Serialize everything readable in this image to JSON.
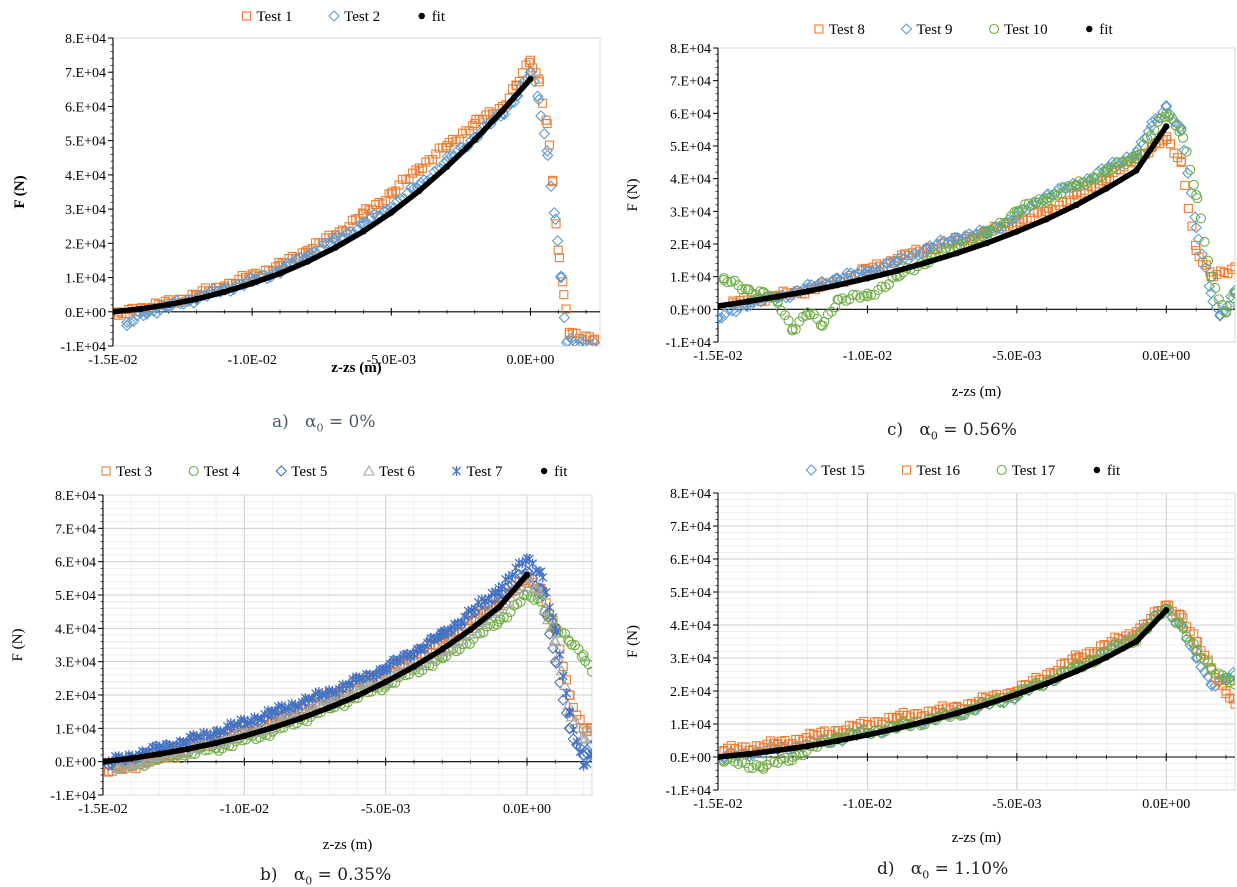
{
  "charts": [
    {
      "id": "a",
      "caption": {
        "letter": "a)",
        "symbol": "α",
        "sub": "0",
        "rest": " = 0%"
      },
      "ylabel": "F (N)",
      "xlabel": "z-zs (m)",
      "bold_labels": true,
      "legend": [
        {
          "name": "Test 1",
          "marker": "square",
          "color": "#ED7D31"
        },
        {
          "name": "Test 2",
          "marker": "diamond",
          "color": "#5B9BD5"
        },
        {
          "name": "fit",
          "marker": "dot",
          "color": "#000000"
        }
      ]
    },
    {
      "id": "c",
      "caption": {
        "letter": "c)",
        "symbol": "α",
        "sub": "0",
        "rest": " = 0.56%"
      },
      "ylabel": "F (N)",
      "xlabel": "z-zs (m)",
      "bold_labels": false,
      "legend": [
        {
          "name": "Test 8",
          "marker": "square",
          "color": "#ED7D31"
        },
        {
          "name": "Test 9",
          "marker": "diamond",
          "color": "#5B9BD5"
        },
        {
          "name": "Test 10",
          "marker": "circle",
          "color": "#70AD47"
        },
        {
          "name": "fit",
          "marker": "dot",
          "color": "#000000"
        }
      ]
    },
    {
      "id": "b",
      "caption": {
        "letter": "b)",
        "symbol": "α",
        "sub": "0",
        "rest": " = 0.35%"
      },
      "ylabel": "F (N)",
      "xlabel": "z-zs (m)",
      "bold_labels": false,
      "legend": [
        {
          "name": "Test 3",
          "marker": "square",
          "color": "#ED7D31"
        },
        {
          "name": "Test 4",
          "marker": "circle",
          "color": "#70AD47"
        },
        {
          "name": "Test 5",
          "marker": "diamond",
          "color": "#4472C4"
        },
        {
          "name": "Test 6",
          "marker": "triangle",
          "color": "#A5A5A5"
        },
        {
          "name": "Test 7",
          "marker": "star",
          "color": "#4472C4"
        },
        {
          "name": "fit",
          "marker": "dot",
          "color": "#000000"
        }
      ]
    },
    {
      "id": "d",
      "caption": {
        "letter": "d)",
        "symbol": "α",
        "sub": "0",
        "rest": " = 1.10%"
      },
      "ylabel": "F (N)",
      "xlabel": "z-zs (m)",
      "bold_labels": false,
      "legend": [
        {
          "name": "Test 15",
          "marker": "diamond",
          "color": "#5B9BD5"
        },
        {
          "name": "Test 16",
          "marker": "square",
          "color": "#ED7D31"
        },
        {
          "name": "Test 17",
          "marker": "circle",
          "color": "#70AD47"
        },
        {
          "name": "fit",
          "marker": "dot",
          "color": "#000000"
        }
      ]
    }
  ],
  "chart_data": [
    {
      "panel": "a",
      "type": "scatter",
      "xlabel": "z-zs (m)",
      "ylabel": "F (N)",
      "xlim": [
        -0.015,
        0.0025
      ],
      "ylim": [
        -10000,
        80000
      ],
      "xticks": [
        -0.015,
        -0.01,
        -0.005,
        0
      ],
      "xtick_labels": [
        "-1.5E-02",
        "-1.0E-02",
        "-5.0E-03",
        "0.0E+00"
      ],
      "yticks": [
        -10000,
        0,
        10000,
        20000,
        30000,
        40000,
        50000,
        60000,
        70000,
        80000
      ],
      "ytick_labels": [
        "-1.E+04",
        "0.E+00",
        "1.E+04",
        "2.E+04",
        "3.E+04",
        "4.E+04",
        "5.E+04",
        "6.E+04",
        "7.E+04",
        "8.E+04"
      ],
      "grid": false,
      "legend": "top",
      "series": [
        {
          "name": "Test 1",
          "marker": "square",
          "x": [
            -0.0148,
            -0.014,
            -0.013,
            -0.012,
            -0.011,
            -0.01,
            -0.009,
            -0.008,
            -0.007,
            -0.006,
            -0.005,
            -0.004,
            -0.003,
            -0.002,
            -0.001,
            -0.0005,
            0.0,
            0.0003,
            0.0006,
            0.0008,
            0.001,
            0.0012,
            0.0014,
            0.0023
          ],
          "y": [
            -1000,
            1000,
            2500,
            5000,
            7500,
            10500,
            13500,
            18000,
            22500,
            28500,
            34500,
            42000,
            48500,
            55000,
            60000,
            66000,
            73500,
            68000,
            55000,
            38000,
            18000,
            5000,
            -6000,
            -8000
          ]
        },
        {
          "name": "Test 2",
          "marker": "diamond",
          "x": [
            -0.0145,
            -0.0138,
            -0.013,
            -0.012,
            -0.011,
            -0.01,
            -0.009,
            -0.008,
            -0.007,
            -0.006,
            -0.005,
            -0.004,
            -0.003,
            -0.002,
            -0.001,
            -0.0005,
            0.0,
            0.0003,
            0.0006,
            0.0009,
            0.0011,
            0.0013,
            0.0023
          ],
          "y": [
            -4000,
            0,
            1500,
            4000,
            6500,
            9000,
            12000,
            16500,
            21000,
            25500,
            30500,
            37000,
            44000,
            51000,
            58000,
            63000,
            70000,
            62000,
            47000,
            27000,
            10000,
            -9000,
            -9000
          ]
        },
        {
          "name": "fit",
          "marker": "dot",
          "x": [
            -0.015,
            -0.014,
            -0.013,
            -0.012,
            -0.011,
            -0.01,
            -0.009,
            -0.008,
            -0.007,
            -0.006,
            -0.005,
            -0.004,
            -0.003,
            -0.002,
            -0.001,
            0.0
          ],
          "y": [
            0,
            850,
            2100,
            3700,
            5800,
            8300,
            11200,
            14700,
            18800,
            23500,
            29000,
            35300,
            42400,
            50200,
            58800,
            68000
          ]
        }
      ]
    },
    {
      "panel": "c",
      "type": "scatter",
      "xlabel": "z-zs (m)",
      "ylabel": "F (N)",
      "xlim": [
        -0.015,
        0.0023
      ],
      "ylim": [
        -10000,
        80000
      ],
      "xticks": [
        -0.015,
        -0.01,
        -0.005,
        0
      ],
      "xtick_labels": [
        "-1.5E-02",
        "-1.0E-02",
        "-5.0E-03",
        "0.0E+00"
      ],
      "yticks": [
        -10000,
        0,
        10000,
        20000,
        30000,
        40000,
        50000,
        60000,
        70000,
        80000
      ],
      "ytick_labels": [
        "-1.E+04",
        "0.E+00",
        "1.E+04",
        "2.E+04",
        "3.E+04",
        "4.E+04",
        "5.E+04",
        "6.E+04",
        "7.E+04",
        "8.E+04"
      ],
      "grid": false,
      "legend": "top",
      "series": [
        {
          "name": "Test 8",
          "marker": "square",
          "x": [
            -0.0145,
            -0.013,
            -0.0115,
            -0.01,
            -0.009,
            -0.008,
            -0.007,
            -0.006,
            -0.005,
            -0.004,
            -0.003,
            -0.002,
            -0.001,
            -0.0005,
            0.0,
            0.0005,
            0.001,
            0.0015,
            0.0023
          ],
          "y": [
            2000,
            4000,
            7000,
            12000,
            15500,
            18500,
            21000,
            23500,
            26500,
            30000,
            35000,
            40000,
            46000,
            49500,
            52000,
            45000,
            18000,
            10000,
            13000
          ]
        },
        {
          "name": "Test 9",
          "marker": "diamond",
          "x": [
            -0.015,
            -0.014,
            -0.013,
            -0.012,
            -0.011,
            -0.01,
            -0.009,
            -0.008,
            -0.007,
            -0.006,
            -0.005,
            -0.004,
            -0.003,
            -0.002,
            -0.001,
            -0.0005,
            0.0,
            0.0005,
            0.001,
            0.0015,
            0.0018,
            0.0023
          ],
          "y": [
            -3000,
            2000,
            3500,
            6500,
            9500,
            11500,
            14500,
            18500,
            22000,
            23500,
            28500,
            35000,
            38000,
            43000,
            48000,
            56000,
            62000,
            55000,
            25000,
            5000,
            -2000,
            5000
          ]
        },
        {
          "name": "Test 10",
          "marker": "circle",
          "x": [
            -0.0148,
            -0.014,
            -0.0135,
            -0.013,
            -0.0125,
            -0.012,
            -0.0115,
            -0.011,
            -0.01,
            -0.009,
            -0.008,
            -0.007,
            -0.006,
            -0.005,
            -0.004,
            -0.003,
            -0.002,
            -0.001,
            0.0,
            0.0005,
            0.001,
            0.0015,
            0.002,
            0.0023
          ],
          "y": [
            9000,
            6000,
            5000,
            2000,
            -6000,
            -1000,
            -5000,
            3000,
            4000,
            10000,
            15000,
            19000,
            23000,
            30000,
            34000,
            38000,
            42000,
            47000,
            60000,
            55000,
            35000,
            10000,
            -1000,
            5000
          ]
        },
        {
          "name": "fit",
          "marker": "dot",
          "x": [
            -0.015,
            -0.014,
            -0.013,
            -0.012,
            -0.011,
            -0.01,
            -0.009,
            -0.008,
            -0.007,
            -0.006,
            -0.005,
            -0.004,
            -0.003,
            -0.002,
            -0.001,
            0.0
          ],
          "y": [
            1000,
            2400,
            3900,
            5500,
            7400,
            9500,
            11800,
            14400,
            17200,
            20300,
            23800,
            27600,
            32000,
            37000,
            42500,
            56000
          ]
        }
      ]
    },
    {
      "panel": "b",
      "type": "scatter",
      "xlabel": "z-zs (m)",
      "ylabel": "F (N)",
      "xlim": [
        -0.015,
        0.0023
      ],
      "ylim": [
        -10000,
        80000
      ],
      "xticks": [
        -0.015,
        -0.01,
        -0.005,
        0
      ],
      "xtick_labels": [
        "-1.5E-02",
        "-1.0E-02",
        "-5.0E-03",
        "0.0E+00"
      ],
      "yticks": [
        -10000,
        0,
        10000,
        20000,
        30000,
        40000,
        50000,
        60000,
        70000,
        80000
      ],
      "ytick_labels": [
        "-1.E+04",
        "0.E+00",
        "1.E+04",
        "2.E+04",
        "3.E+04",
        "4.E+04",
        "5.E+04",
        "6.E+04",
        "7.E+04",
        "8.E+04"
      ],
      "grid": true,
      "legend": "top",
      "series": [
        {
          "name": "Test 3",
          "marker": "square",
          "x": [
            -0.0148,
            -0.013,
            -0.011,
            -0.009,
            -0.007,
            -0.005,
            -0.003,
            -0.001,
            0.0,
            0.0005,
            0.001,
            0.0015,
            0.002,
            0.0023
          ],
          "y": [
            -3000,
            1000,
            6000,
            12000,
            20000,
            27000,
            36000,
            48000,
            55000,
            52000,
            40000,
            20000,
            10000,
            10000
          ]
        },
        {
          "name": "Test 4",
          "marker": "circle",
          "x": [
            -0.0145,
            -0.013,
            -0.011,
            -0.009,
            -0.007,
            -0.005,
            -0.003,
            -0.001,
            0.0,
            0.0005,
            0.001,
            0.0015,
            0.002,
            0.0023
          ],
          "y": [
            -2000,
            1000,
            4000,
            9000,
            16000,
            23000,
            31000,
            42000,
            50000,
            48000,
            40000,
            36000,
            32000,
            27000
          ]
        },
        {
          "name": "Test 5",
          "marker": "diamond",
          "x": [
            -0.0148,
            -0.013,
            -0.011,
            -0.009,
            -0.007,
            -0.005,
            -0.003,
            -0.001,
            0.0,
            0.0005,
            0.001,
            0.0015,
            0.002,
            0.0023
          ],
          "y": [
            -1000,
            4000,
            8000,
            14000,
            20000,
            28000,
            38000,
            50000,
            57000,
            52000,
            30000,
            10000,
            2000,
            5000
          ]
        },
        {
          "name": "Test 6",
          "marker": "triangle",
          "x": [
            -0.0145,
            -0.013,
            -0.011,
            -0.009,
            -0.007,
            -0.005,
            -0.003,
            -0.001,
            0.0,
            0.0005,
            0.001,
            0.0015,
            0.002,
            0.0023
          ],
          "y": [
            -2000,
            2000,
            6000,
            11000,
            18000,
            25000,
            33000,
            46000,
            55000,
            50000,
            36000,
            15000,
            7000,
            10000
          ]
        },
        {
          "name": "Test 7",
          "marker": "star",
          "x": [
            -0.0148,
            -0.013,
            -0.011,
            -0.009,
            -0.007,
            -0.005,
            -0.003,
            -0.001,
            0.0,
            0.0005,
            0.001,
            0.0015,
            0.002,
            0.0023
          ],
          "y": [
            0,
            4000,
            9000,
            15000,
            21000,
            28000,
            38000,
            52000,
            61000,
            57000,
            40000,
            15000,
            -1000,
            2000
          ]
        },
        {
          "name": "fit",
          "marker": "dot",
          "x": [
            -0.015,
            -0.014,
            -0.013,
            -0.012,
            -0.011,
            -0.01,
            -0.009,
            -0.008,
            -0.007,
            -0.006,
            -0.005,
            -0.004,
            -0.003,
            -0.002,
            -0.001,
            0.0
          ],
          "y": [
            0,
            1000,
            2300,
            3800,
            5600,
            7700,
            10200,
            13000,
            16200,
            19800,
            23900,
            28500,
            33700,
            39600,
            46300,
            56000
          ]
        }
      ]
    },
    {
      "panel": "d",
      "type": "scatter",
      "xlabel": "z-zs (m)",
      "ylabel": "F (N)",
      "xlim": [
        -0.015,
        0.0023
      ],
      "ylim": [
        -10000,
        80000
      ],
      "xticks": [
        -0.015,
        -0.01,
        -0.005,
        0
      ],
      "xtick_labels": [
        "-1.5E-02",
        "-1.0E-02",
        "-5.0E-03",
        "0.0E+00"
      ],
      "yticks": [
        -10000,
        0,
        10000,
        20000,
        30000,
        40000,
        50000,
        60000,
        70000,
        80000
      ],
      "ytick_labels": [
        "-1.E+04",
        "0.E+00",
        "1.E+04",
        "2.E+04",
        "3.E+04",
        "4.E+04",
        "5.E+04",
        "6.E+04",
        "7.E+04",
        "8.E+04"
      ],
      "grid": true,
      "legend": "top",
      "series": [
        {
          "name": "Test 15",
          "marker": "diamond",
          "x": [
            -0.0148,
            -0.013,
            -0.011,
            -0.009,
            -0.007,
            -0.005,
            -0.003,
            -0.001,
            0.0,
            0.0005,
            0.001,
            0.0015,
            0.002,
            0.0023
          ],
          "y": [
            0,
            2500,
            5500,
            9500,
            13500,
            18500,
            27500,
            37000,
            45000,
            40000,
            30000,
            22000,
            24000,
            25000
          ]
        },
        {
          "name": "Test 16",
          "marker": "square",
          "x": [
            -0.0148,
            -0.013,
            -0.011,
            -0.009,
            -0.007,
            -0.005,
            -0.003,
            -0.001,
            0.0,
            0.0005,
            0.001,
            0.0015,
            0.002,
            0.0023
          ],
          "y": [
            2000,
            4000,
            8000,
            12000,
            15000,
            20000,
            30000,
            38000,
            46000,
            43000,
            35000,
            27000,
            20000,
            16000
          ]
        },
        {
          "name": "Test 17",
          "marker": "circle",
          "x": [
            -0.0148,
            -0.0135,
            -0.0125,
            -0.011,
            -0.009,
            -0.007,
            -0.005,
            -0.003,
            -0.001,
            0.0,
            0.0005,
            0.001,
            0.0015,
            0.002,
            0.0023
          ],
          "y": [
            -1000,
            -3000,
            0,
            6000,
            9000,
            13000,
            19000,
            27000,
            36000,
            45000,
            40000,
            32000,
            27000,
            24000,
            22000
          ]
        },
        {
          "name": "fit",
          "marker": "dot",
          "x": [
            -0.015,
            -0.014,
            -0.013,
            -0.012,
            -0.011,
            -0.01,
            -0.009,
            -0.008,
            -0.007,
            -0.006,
            -0.005,
            -0.004,
            -0.003,
            -0.002,
            -0.001,
            0.0
          ],
          "y": [
            0,
            900,
            2000,
            3300,
            4900,
            6700,
            8700,
            10900,
            13300,
            16000,
            19000,
            22300,
            26000,
            30200,
            35000,
            44500
          ]
        }
      ]
    }
  ]
}
